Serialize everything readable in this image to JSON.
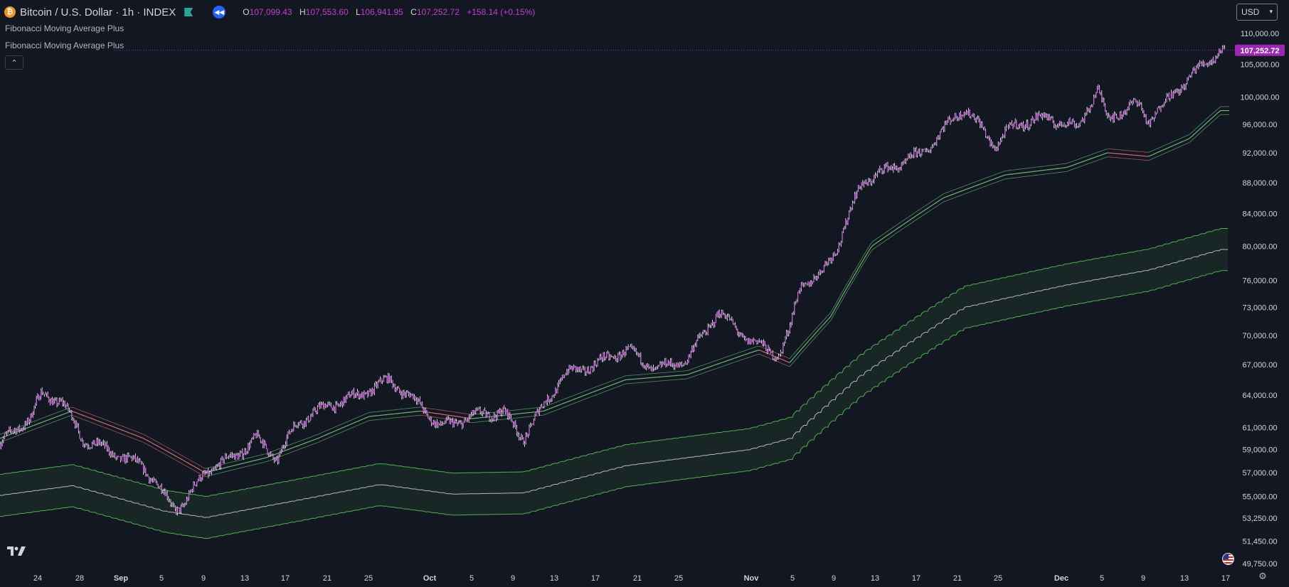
{
  "header": {
    "coin_letter": "₿",
    "symbol": "Bitcoin / U.S. Dollar · 1h · INDEX",
    "ohlc": {
      "o_label": "O",
      "o": "107,099.43",
      "h_label": "H",
      "h": "107,553.60",
      "l_label": "L",
      "l": "106,941.95",
      "c_label": "C",
      "c": "107,252.72",
      "change": "+158.14 (+0.15%)"
    }
  },
  "indicators": [
    "Fibonacci Moving Average Plus",
    "Fibonacci Moving Average Plus"
  ],
  "currency": "USD",
  "collapse_glyph": "⌃",
  "colors": {
    "background": "#131722",
    "candles": "#c96ddb",
    "candle_wick": "#ffffff",
    "fast_band_up": "#6fbf73",
    "fast_band_down": "#d9706d",
    "slow_band": "#4caf50",
    "slow_mid": "#b2b5be",
    "price_label": "#9c27b0",
    "axis_text": "#d1d4dc"
  },
  "chart_data": {
    "type": "line",
    "x_labels": [
      "24",
      "28",
      "Sep",
      "5",
      "9",
      "13",
      "17",
      "21",
      "25",
      "Oct",
      "5",
      "9",
      "13",
      "17",
      "21",
      "25",
      "Nov",
      "5",
      "9",
      "13",
      "17",
      "21",
      "25",
      "Dec",
      "5",
      "9",
      "13",
      "17"
    ],
    "y_tick_labels": [
      "110,000.00",
      "105,000.00",
      "100,000.00",
      "96,000.00",
      "92,000.00",
      "88,000.00",
      "84,000.00",
      "80,000.00",
      "76,000.00",
      "73,000.00",
      "70,000.00",
      "67,000.00",
      "64,000.00",
      "61,000.00",
      "59,000.00",
      "57,000.00",
      "55,000.00",
      "53,250.00",
      "51,450.00",
      "49,750.00"
    ],
    "y_ticks": [
      110000,
      105000,
      100000,
      96000,
      92000,
      88000,
      84000,
      80000,
      76000,
      73000,
      70000,
      67000,
      64000,
      61000,
      59000,
      57000,
      55000,
      53250,
      51450,
      49750
    ],
    "y_scale": "log",
    "last_price": 107252.72,
    "last_price_label": "107,252.72",
    "series": [
      {
        "type": "candles",
        "x": [
          "2024-08-20",
          "2024-08-23",
          "2024-08-24",
          "2024-08-26",
          "2024-08-28",
          "2024-08-31",
          "2024-09-03",
          "2024-09-06",
          "2024-09-07",
          "2024-09-09",
          "2024-09-12",
          "2024-09-14",
          "2024-09-16",
          "2024-09-18",
          "2024-09-21",
          "2024-09-24",
          "2024-09-27",
          "2024-09-30",
          "2024-10-02",
          "2024-10-05",
          "2024-10-08",
          "2024-10-10",
          "2024-10-12",
          "2024-10-14",
          "2024-10-17",
          "2024-10-20",
          "2024-10-23",
          "2024-10-26",
          "2024-10-29",
          "2024-11-01",
          "2024-11-04",
          "2024-11-05",
          "2024-11-06",
          "2024-11-08",
          "2024-11-10",
          "2024-11-12",
          "2024-11-15",
          "2024-11-18",
          "2024-11-22",
          "2024-11-25",
          "2024-11-27",
          "2024-11-30",
          "2024-12-03",
          "2024-12-05",
          "2024-12-06",
          "2024-12-09",
          "2024-12-10",
          "2024-12-13",
          "2024-12-16",
          "2024-12-17"
        ],
        "y": [
          59500,
          62000,
          64000,
          63500,
          60000,
          58700,
          57500,
          54000,
          54500,
          57000,
          58500,
          60000,
          58200,
          61500,
          63000,
          64000,
          65500,
          63000,
          61000,
          62000,
          62500,
          60000,
          63000,
          66000,
          67000,
          68500,
          66500,
          67500,
          72500,
          69500,
          68000,
          70500,
          75500,
          76500,
          81000,
          88000,
          90000,
          92000,
          98500,
          93000,
          96000,
          97000,
          95500,
          101000,
          97000,
          99000,
          96500,
          101500,
          106000,
          107252.72
        ]
      },
      {
        "type": "band",
        "x": [
          "2024-08-20",
          "2024-08-27",
          "2024-09-03",
          "2024-09-09",
          "2024-09-15",
          "2024-09-20",
          "2024-09-25",
          "2024-09-30",
          "2024-10-05",
          "2024-10-12",
          "2024-10-20",
          "2024-10-26",
          "2024-11-02",
          "2024-11-05",
          "2024-11-09",
          "2024-11-13",
          "2024-11-20",
          "2024-11-26",
          "2024-12-02",
          "2024-12-06",
          "2024-12-10",
          "2024-12-14",
          "2024-12-17"
        ],
        "y": [
          60000,
          62500,
          60000,
          57000,
          58300,
          60000,
          62000,
          62500,
          61800,
          62500,
          65500,
          66000,
          68500,
          67200,
          72000,
          80000,
          86000,
          89000,
          90000,
          92000,
          91500,
          94000,
          98000
        ]
      },
      {
        "type": "band",
        "x": [
          "2024-08-20",
          "2024-08-27",
          "2024-09-05",
          "2024-09-09",
          "2024-09-18",
          "2024-09-26",
          "2024-10-03",
          "2024-10-10",
          "2024-10-20",
          "2024-11-01",
          "2024-11-05",
          "2024-11-12",
          "2024-11-22",
          "2024-12-02",
          "2024-12-10",
          "2024-12-17"
        ],
        "y": [
          55100,
          55900,
          53800,
          53300,
          54700,
          56000,
          55200,
          55300,
          57600,
          59000,
          60000,
          66000,
          73000,
          75500,
          77200,
          79600
        ]
      }
    ]
  }
}
